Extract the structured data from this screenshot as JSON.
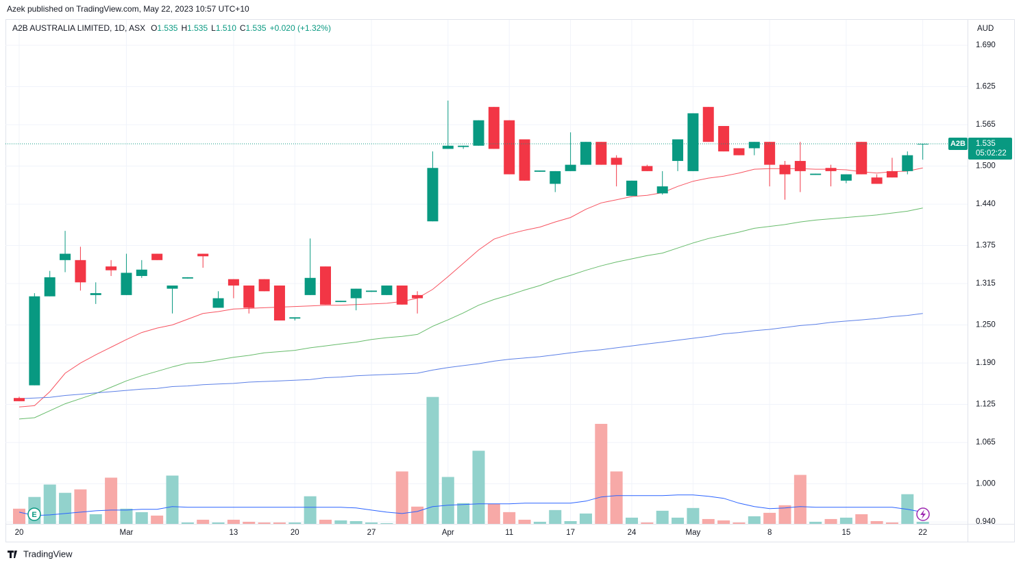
{
  "publisher": "Azek published on TradingView.com, May 22, 2023 10:57 UTC+10",
  "footer": "TradingView",
  "chart_data": {
    "type": "candlestick",
    "symbol_title": "A2B AUSTRALIA LIMITED, 1D, ASX",
    "ohlc_legend": [
      {
        "label": "O",
        "value": "1.535"
      },
      {
        "label": "H",
        "value": "1.535"
      },
      {
        "label": "L",
        "value": "1.510"
      },
      {
        "label": "C",
        "value": "1.535"
      }
    ],
    "change": "+0.020 (+1.32%)",
    "currency": "AUD",
    "symbol": "A2B",
    "last_price": 1.535,
    "countdown": "05:02:22",
    "earnings_marker": "E",
    "up_color": "#089981",
    "down_color": "#f23645",
    "volume_up_color": "#92d2cc",
    "volume_down_color": "#f7a9a7",
    "grid": true,
    "categories": [
      "20",
      null,
      null,
      null,
      null,
      null,
      null,
      "Mar",
      null,
      null,
      null,
      null,
      null,
      null,
      "13",
      null,
      null,
      null,
      "20",
      null,
      null,
      null,
      null,
      "27",
      null,
      null,
      null,
      null,
      "Apr",
      null,
      null,
      null,
      "11",
      null,
      null,
      null,
      "17",
      null,
      null,
      null,
      "24",
      null,
      null,
      null,
      "May",
      null,
      null,
      null,
      null,
      "8",
      null,
      null,
      null,
      null,
      "15",
      null,
      null,
      null,
      null,
      "22"
    ],
    "open": [
      1.135,
      1.155,
      1.295,
      1.352,
      1.352,
      1.297,
      1.342,
      1.297,
      1.327,
      1.362,
      1.307,
      1.323,
      1.362,
      1.277,
      1.322,
      1.312,
      1.322,
      1.312,
      1.26,
      1.297,
      1.342,
      1.286,
      1.292,
      1.302,
      1.297,
      1.312,
      1.297,
      1.413,
      1.527,
      1.53,
      1.532,
      1.593,
      1.572,
      1.542,
      1.491,
      1.472,
      1.492,
      1.502,
      1.538,
      1.513,
      1.453,
      1.5,
      1.457,
      1.508,
      1.492,
      1.593,
      1.563,
      1.528,
      1.528,
      1.538,
      1.502,
      1.508,
      1.486,
      1.497,
      1.477,
      1.538,
      1.482,
      1.492,
      1.492,
      1.535
    ],
    "high": [
      1.137,
      1.3,
      1.335,
      1.398,
      1.373,
      1.317,
      1.352,
      1.362,
      1.352,
      1.362,
      1.312,
      1.325,
      1.362,
      1.303,
      1.322,
      1.312,
      1.322,
      1.312,
      1.262,
      1.386,
      1.342,
      1.288,
      1.307,
      1.304,
      1.312,
      1.312,
      1.303,
      1.523,
      1.603,
      1.532,
      1.572,
      1.593,
      1.572,
      1.542,
      1.493,
      1.492,
      1.553,
      1.538,
      1.538,
      1.517,
      1.477,
      1.502,
      1.492,
      1.542,
      1.583,
      1.593,
      1.563,
      1.528,
      1.538,
      1.538,
      1.508,
      1.538,
      1.488,
      1.502,
      1.487,
      1.538,
      1.487,
      1.513,
      1.523,
      1.535
    ],
    "low": [
      1.13,
      1.155,
      1.295,
      1.333,
      1.304,
      1.283,
      1.327,
      1.297,
      1.324,
      1.352,
      1.268,
      1.323,
      1.34,
      1.277,
      1.292,
      1.268,
      1.303,
      1.257,
      1.257,
      1.297,
      1.282,
      1.286,
      1.273,
      1.302,
      1.297,
      1.282,
      1.268,
      1.413,
      1.527,
      1.527,
      1.532,
      1.527,
      1.487,
      1.477,
      1.491,
      1.459,
      1.492,
      1.502,
      1.502,
      1.468,
      1.453,
      1.492,
      1.455,
      1.492,
      1.492,
      1.538,
      1.523,
      1.517,
      1.517,
      1.468,
      1.447,
      1.459,
      1.486,
      1.468,
      1.473,
      1.487,
      1.472,
      1.482,
      1.487,
      1.51
    ],
    "close": [
      1.13,
      1.295,
      1.325,
      1.362,
      1.317,
      1.3,
      1.336,
      1.332,
      1.337,
      1.352,
      1.312,
      1.325,
      1.358,
      1.292,
      1.312,
      1.277,
      1.303,
      1.257,
      1.262,
      1.324,
      1.282,
      1.288,
      1.307,
      1.304,
      1.312,
      1.282,
      1.292,
      1.497,
      1.532,
      1.532,
      1.572,
      1.527,
      1.487,
      1.477,
      1.493,
      1.492,
      1.502,
      1.538,
      1.502,
      1.502,
      1.477,
      1.492,
      1.468,
      1.542,
      1.583,
      1.538,
      1.523,
      1.517,
      1.538,
      1.502,
      1.487,
      1.492,
      1.488,
      1.492,
      1.487,
      1.487,
      1.472,
      1.482,
      1.517,
      1.535
    ],
    "volume": [
      22,
      39,
      57,
      45,
      50,
      14,
      67,
      22,
      17,
      12,
      70,
      2,
      6,
      2,
      6,
      3,
      2,
      2,
      2,
      40,
      6,
      5,
      4,
      2,
      1,
      76,
      25,
      184,
      68,
      30,
      106,
      29,
      17,
      6,
      3,
      20,
      4,
      15,
      145,
      76,
      9,
      2,
      19,
      9,
      23,
      7,
      5,
      2,
      11,
      16,
      27,
      71,
      3,
      7,
      9,
      14,
      4,
      2,
      43,
      3
    ],
    "volume_ma": {
      "color": "#2962ff",
      "values": [
        17,
        12,
        13,
        15,
        17,
        19,
        20,
        20,
        21,
        21,
        25,
        24,
        24,
        24,
        24,
        24,
        24,
        24,
        24,
        24,
        24,
        24,
        23,
        20,
        17,
        15,
        18,
        25,
        27,
        28,
        29,
        29,
        29,
        30,
        30,
        30,
        30,
        33,
        39,
        41,
        41,
        41,
        41,
        42,
        42,
        40,
        37,
        30,
        25,
        22,
        23,
        25,
        24,
        24,
        24,
        24,
        24,
        24,
        21,
        17
      ]
    },
    "volume_lim": [
      0,
      190
    ],
    "ma_series": [
      {
        "color": "#f7525f",
        "values": [
          1.121,
          1.123,
          1.145,
          1.174,
          1.19,
          1.203,
          1.215,
          1.227,
          1.238,
          1.245,
          1.25,
          1.259,
          1.268,
          1.271,
          1.275,
          1.276,
          1.277,
          1.278,
          1.279,
          1.28,
          1.281,
          1.281,
          1.282,
          1.283,
          1.284,
          1.287,
          1.292,
          1.306,
          1.326,
          1.347,
          1.368,
          1.385,
          1.393,
          1.399,
          1.404,
          1.412,
          1.419,
          1.432,
          1.442,
          1.447,
          1.452,
          1.454,
          1.458,
          1.468,
          1.476,
          1.481,
          1.484,
          1.489,
          1.495,
          1.496,
          1.496,
          1.496,
          1.495,
          1.495,
          1.494,
          1.491,
          1.489,
          1.491,
          1.492,
          1.497
        ]
      },
      {
        "color": "#66bb6a",
        "values": [
          1.102,
          1.104,
          1.115,
          1.126,
          1.134,
          1.142,
          1.152,
          1.162,
          1.17,
          1.177,
          1.184,
          1.19,
          1.191,
          1.195,
          1.199,
          1.202,
          1.206,
          1.208,
          1.21,
          1.214,
          1.217,
          1.22,
          1.223,
          1.227,
          1.23,
          1.232,
          1.235,
          1.248,
          1.258,
          1.269,
          1.281,
          1.29,
          1.297,
          1.305,
          1.312,
          1.321,
          1.328,
          1.336,
          1.343,
          1.349,
          1.354,
          1.359,
          1.363,
          1.371,
          1.379,
          1.386,
          1.391,
          1.396,
          1.402,
          1.405,
          1.408,
          1.412,
          1.415,
          1.417,
          1.419,
          1.421,
          1.423,
          1.426,
          1.429,
          1.434
        ]
      },
      {
        "color": "#5b7fe6",
        "values": [
          1.134,
          1.135,
          1.136,
          1.139,
          1.141,
          1.143,
          1.145,
          1.147,
          1.149,
          1.15,
          1.153,
          1.154,
          1.156,
          1.157,
          1.158,
          1.16,
          1.161,
          1.162,
          1.163,
          1.164,
          1.167,
          1.168,
          1.17,
          1.171,
          1.172,
          1.173,
          1.174,
          1.179,
          1.183,
          1.186,
          1.189,
          1.193,
          1.196,
          1.198,
          1.2,
          1.203,
          1.206,
          1.209,
          1.211,
          1.214,
          1.217,
          1.22,
          1.223,
          1.226,
          1.229,
          1.232,
          1.236,
          1.238,
          1.241,
          1.243,
          1.246,
          1.249,
          1.251,
          1.254,
          1.256,
          1.258,
          1.26,
          1.263,
          1.265,
          1.268
        ]
      }
    ],
    "ylim": [
      0.937,
      1.73
    ],
    "yticks": [
      {
        "value": 1.69,
        "label": "1.690"
      },
      {
        "value": 1.625,
        "label": "1.625"
      },
      {
        "value": 1.565,
        "label": "1.565"
      },
      {
        "value": 1.5,
        "label": "1.500"
      },
      {
        "value": 1.44,
        "label": "1.440"
      },
      {
        "value": 1.375,
        "label": "1.375"
      },
      {
        "value": 1.315,
        "label": "1.315"
      },
      {
        "value": 1.25,
        "label": "1.250"
      },
      {
        "value": 1.19,
        "label": "1.190"
      },
      {
        "value": 1.125,
        "label": "1.125"
      },
      {
        "value": 1.065,
        "label": "1.065"
      },
      {
        "value": 1.0,
        "label": "1.000"
      },
      {
        "value": 0.94,
        "label": "0.940"
      }
    ]
  }
}
